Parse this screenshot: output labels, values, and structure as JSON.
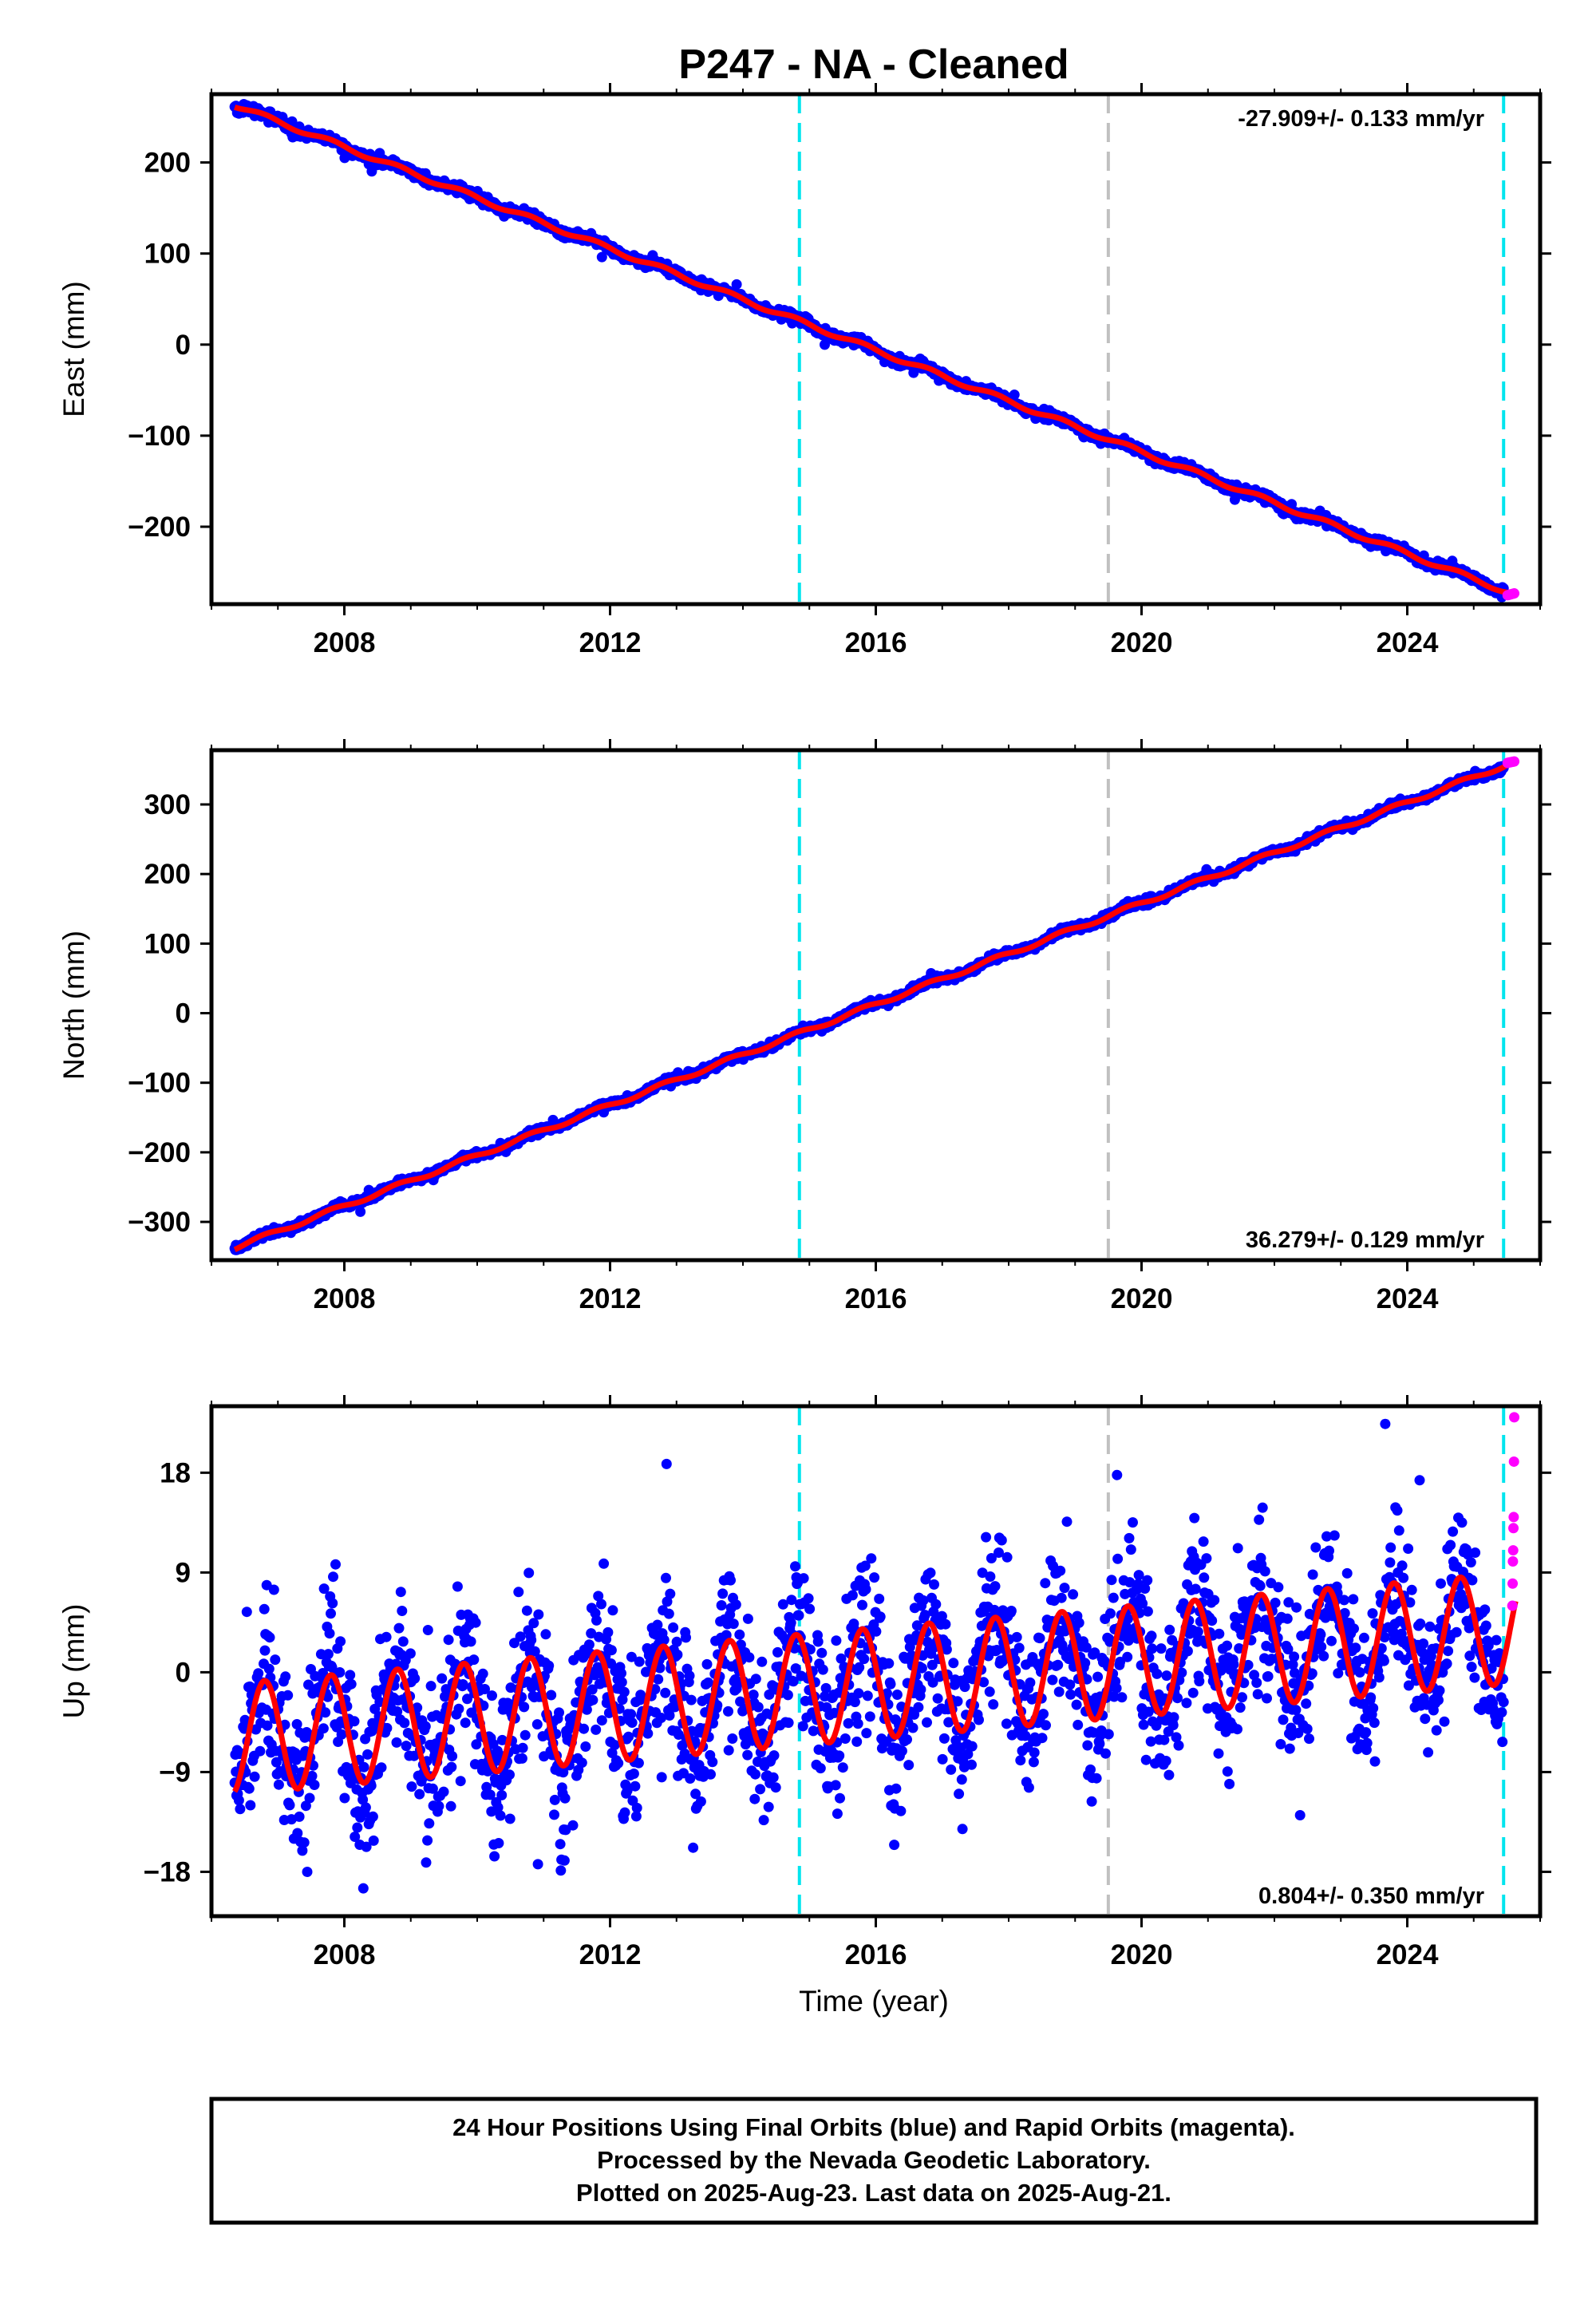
{
  "title": "P247  - NA - Cleaned",
  "footer": {
    "lines": [
      "24 Hour Positions Using Final Orbits (blue) and Rapid Orbits (magenta).",
      "Processed by the Nevada Geodetic Laboratory.",
      "Plotted on 2025-Aug-23. Last data on 2025-Aug-21."
    ]
  },
  "colors": {
    "final": "#0000ff",
    "rapid": "#ff00ff",
    "model": "#ff0000",
    "equipment_change": "#00e5ee",
    "earthquake": "#c0c0c0"
  },
  "chart_data": [
    {
      "type": "scatter",
      "name": "east",
      "ylabel": "East (mm)",
      "xlim": [
        2006.0,
        2026.0
      ],
      "ylim": [
        -285,
        275
      ],
      "xticks": [
        2008,
        2012,
        2016,
        2020,
        2024
      ],
      "xtick_labels": [
        "2008",
        "2012",
        "2016",
        "2020",
        "2024"
      ],
      "yticks": [
        200,
        100,
        0,
        -100,
        -200
      ],
      "ytick_labels": [
        "200",
        "100",
        "0",
        "−100",
        "−200"
      ],
      "rate_label": "-27.909+/- 0.133 mm/yr",
      "rate_position": "top-right",
      "start": [
        2006.35,
        263
      ],
      "end": [
        2025.63,
        -275
      ],
      "seasonal_amplitude": 2.5,
      "noise": 2.5,
      "rapid_end_value": -274,
      "vlines": [
        {
          "x": 2014.85,
          "kind": "equipment_change"
        },
        {
          "x": 2019.5,
          "kind": "earthquake"
        },
        {
          "x": 2025.45,
          "kind": "equipment_change"
        }
      ]
    },
    {
      "type": "scatter",
      "name": "north",
      "ylabel": "North (mm)",
      "xlim": [
        2006.0,
        2026.0
      ],
      "ylim": [
        -355,
        378
      ],
      "xticks": [
        2008,
        2012,
        2016,
        2020,
        2024
      ],
      "xtick_labels": [
        "2008",
        "2012",
        "2016",
        "2020",
        "2024"
      ],
      "yticks": [
        300,
        200,
        100,
        0,
        -100,
        -200,
        -300
      ],
      "ytick_labels": [
        "300",
        "200",
        "100",
        "0",
        "−100",
        "−200",
        "−300"
      ],
      "rate_label": "36.279+/- 0.129 mm/yr",
      "rate_position": "bottom-right",
      "start": [
        2006.35,
        -337
      ],
      "end": [
        2025.63,
        362
      ],
      "seasonal_amplitude": 3,
      "noise": 2.5,
      "rapid_end_value": 361,
      "vlines": [
        {
          "x": 2014.85,
          "kind": "equipment_change"
        },
        {
          "x": 2019.5,
          "kind": "earthquake"
        },
        {
          "x": 2025.45,
          "kind": "equipment_change"
        }
      ]
    },
    {
      "type": "scatter",
      "name": "up",
      "ylabel": "Up (mm)",
      "xlabel": "Time (year)",
      "xlim": [
        2006.0,
        2026.0
      ],
      "ylim": [
        -22,
        24
      ],
      "xticks": [
        2008,
        2012,
        2016,
        2020,
        2024
      ],
      "xtick_labels": [
        "2008",
        "2012",
        "2016",
        "2020",
        "2024"
      ],
      "yticks": [
        18,
        9,
        0,
        -9,
        -18
      ],
      "ytick_labels": [
        "18",
        "9",
        "0",
        "−9",
        "−18"
      ],
      "rate_label": "0.804+/- 0.350 mm/yr",
      "rate_position": "bottom-right",
      "start": [
        2006.35,
        -6
      ],
      "end": [
        2025.63,
        4
      ],
      "seasonal_amplitude": 5,
      "noise": 3.5,
      "rapid_values": [
        23,
        19,
        14,
        13,
        11,
        10,
        8,
        6
      ],
      "vlines": [
        {
          "x": 2014.85,
          "kind": "equipment_change"
        },
        {
          "x": 2019.5,
          "kind": "earthquake"
        },
        {
          "x": 2025.45,
          "kind": "equipment_change"
        }
      ]
    }
  ]
}
